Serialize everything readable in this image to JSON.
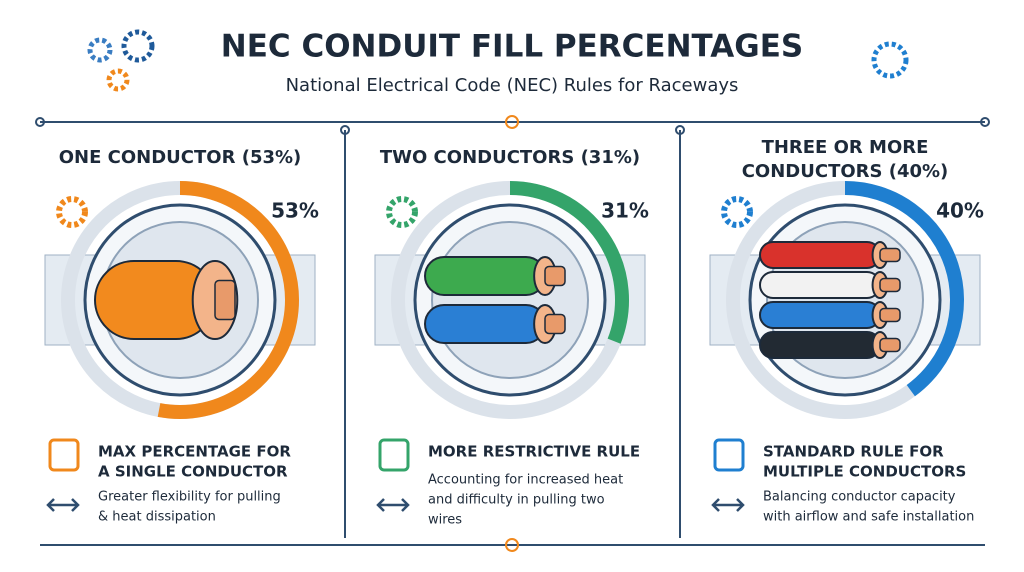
{
  "header": {
    "title": "NEC CONDUIT FILL PERCENTAGES",
    "subtitle": "National Electrical Code (NEC) Rules for Raceways"
  },
  "panels": [
    {
      "heading_lines": [
        "ONE CONDUCTOR (53%)"
      ],
      "value": 53,
      "value_label": "53%",
      "color": "#f0881c",
      "rule_lines": [
        "MAX PERCENTAGE FOR",
        "A SINGLE CONDUCTOR"
      ],
      "description_lines": [
        "Greater flexibility for pulling",
        "& heat dissipation"
      ]
    },
    {
      "heading_lines": [
        "TWO CONDUCTORS (31%)"
      ],
      "value": 31,
      "value_label": "31%",
      "color": "#34a46a",
      "rule_lines": [
        "MORE RESTRICTIVE RULE"
      ],
      "description_lines": [
        "Accounting for increased heat",
        "and difficulty in pulling two",
        "wires"
      ]
    },
    {
      "heading_lines": [
        "THREE OR MORE",
        "CONDUCTORS (40%)"
      ],
      "value": 40,
      "value_label": "40%",
      "color": "#1f7fd0",
      "rule_lines": [
        "STANDARD RULE FOR",
        "MULTIPLE CONDUCTORS"
      ],
      "description_lines": [
        "Balancing conductor capacity",
        "with airflow and safe installation"
      ]
    }
  ]
}
